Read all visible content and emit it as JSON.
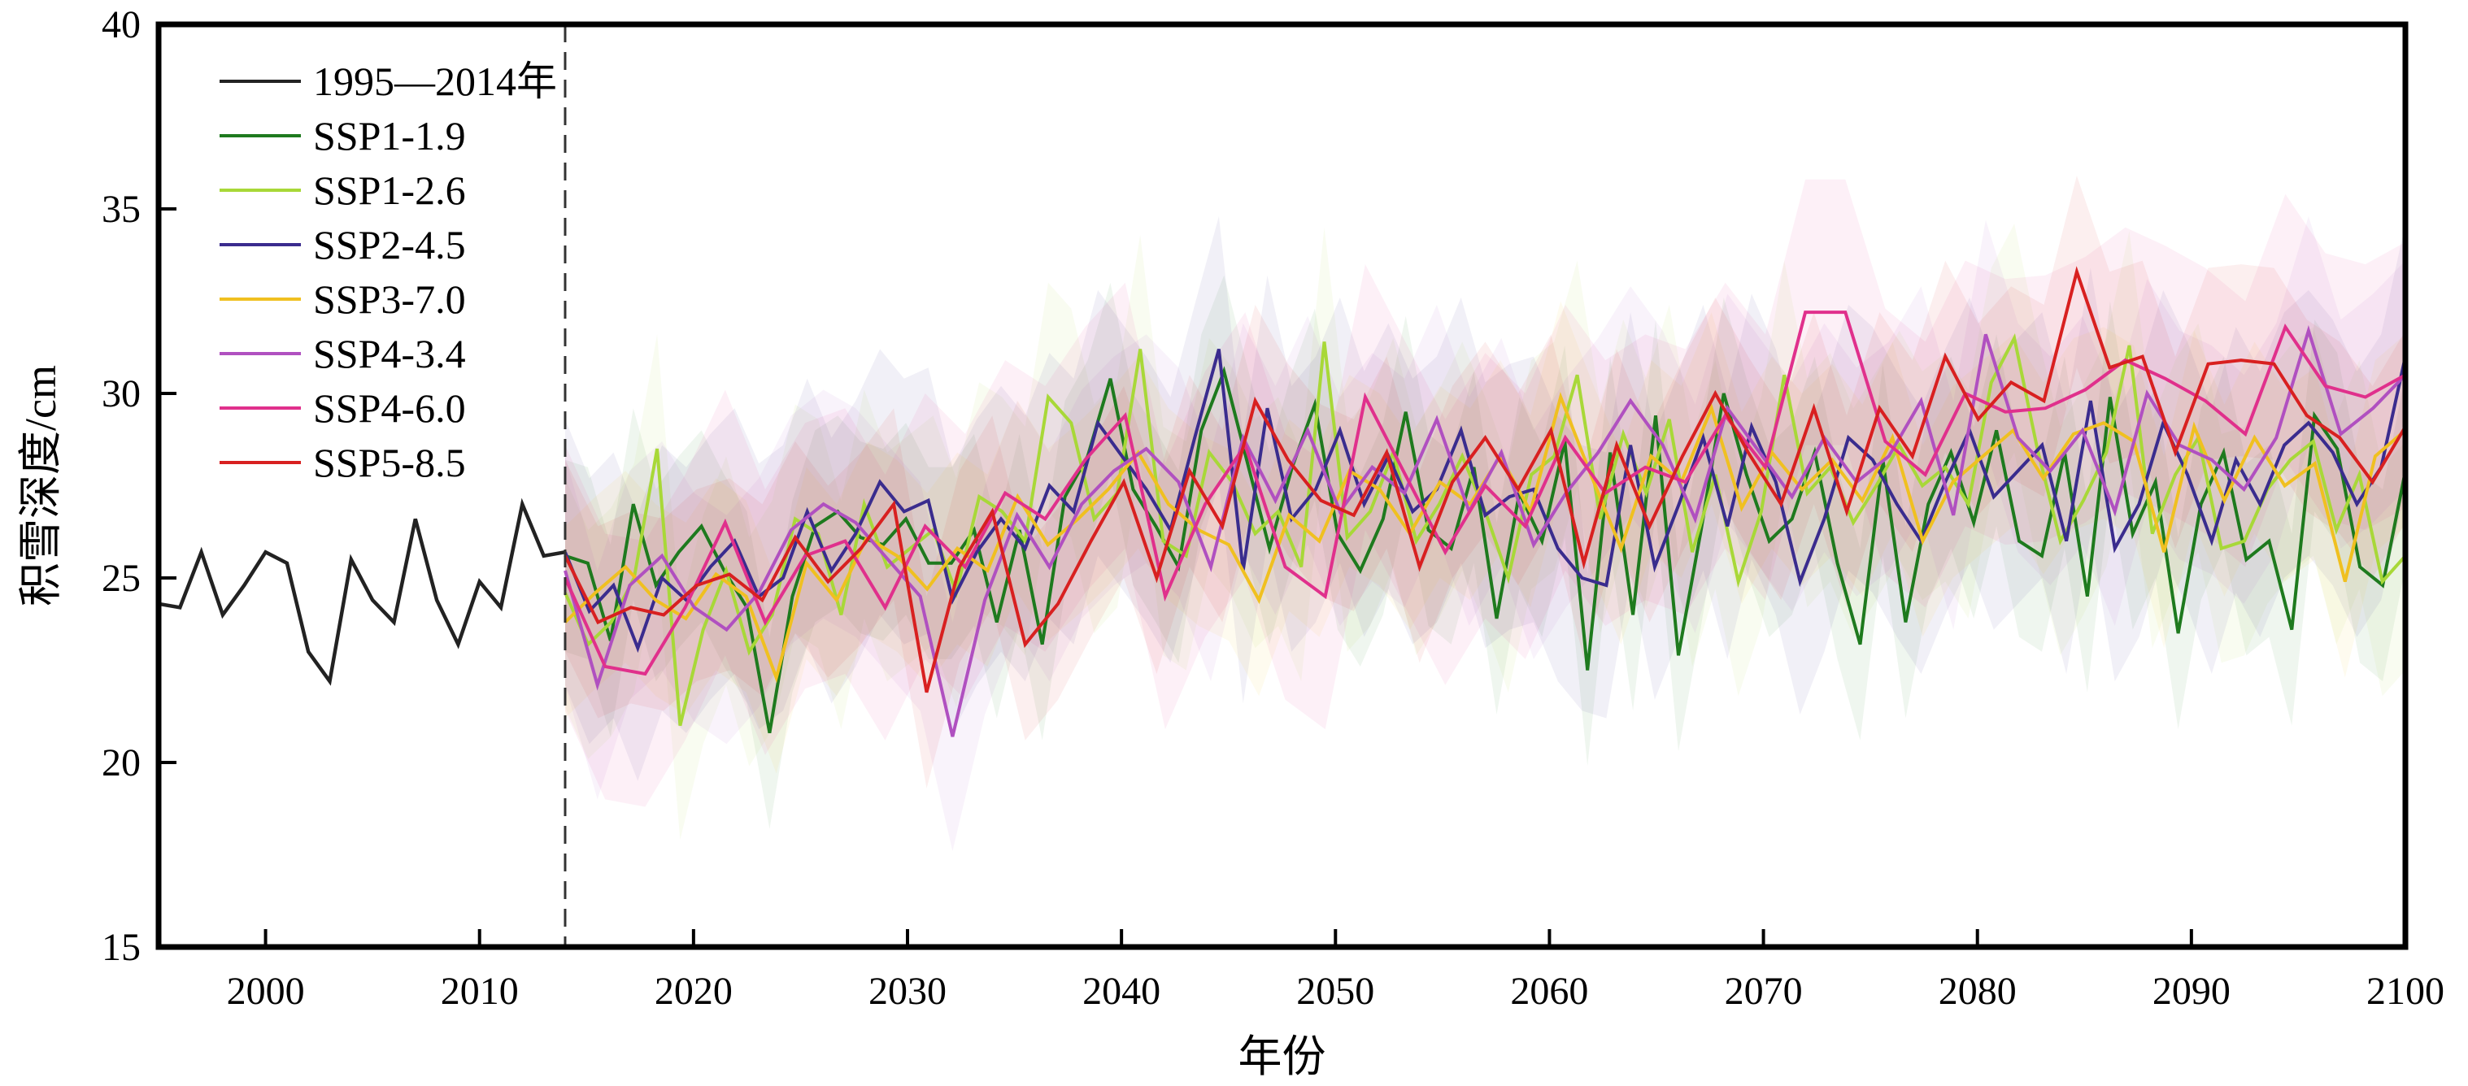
{
  "chart_data": {
    "type": "line",
    "xlabel": "年份",
    "ylabel": "积雪深度/cm",
    "xlim": [
      1995,
      2100
    ],
    "ylim": [
      15,
      40
    ],
    "xticks": [
      2000,
      2010,
      2020,
      2030,
      2040,
      2050,
      2060,
      2070,
      2080,
      2090,
      2100
    ],
    "yticks": [
      15,
      20,
      25,
      30,
      35,
      40
    ],
    "divider_year": 2014,
    "legend_position": "top-left",
    "historical": {
      "name": "1995—2014年",
      "color": "#222222",
      "x": [
        1995,
        1996,
        1997,
        1998,
        1999,
        2000,
        2001,
        2002,
        2003,
        2004,
        2005,
        2006,
        2007,
        2008,
        2009,
        2010,
        2011,
        2012,
        2013,
        2014
      ],
      "values": [
        24.3,
        24.2,
        25.7,
        24.0,
        24.8,
        25.7,
        25.4,
        23.0,
        22.2,
        25.5,
        24.4,
        23.8,
        26.6,
        24.4,
        23.2,
        24.9,
        24.2,
        27.0,
        25.6,
        25.7
      ]
    },
    "scenario_start": 2014,
    "series": [
      {
        "name": "SSP1-1.9",
        "color": "#1e7a1e",
        "values": [
          25.6,
          25.4,
          23.3,
          27.0,
          24.8,
          25.7,
          26.4,
          25.2,
          24.2,
          20.8,
          24.5,
          26.4,
          26.8,
          26.1,
          25.9,
          26.6,
          25.4,
          25.4,
          26.3,
          23.8,
          26.3,
          23.2,
          27.2,
          28.3,
          30.4,
          27.4,
          26.4,
          25.3,
          29.0,
          30.6,
          28.2,
          25.8,
          28.0,
          29.7,
          26.2,
          25.2,
          26.6,
          29.5,
          26.3,
          25.8,
          28.0,
          23.9,
          27.3,
          26.0,
          28.7,
          22.5,
          28.4,
          24.0,
          29.4,
          22.9,
          26.3,
          30.0,
          27.8,
          26.0,
          26.6,
          28.4,
          25.4,
          23.2,
          28.2,
          23.8,
          27.0,
          28.4,
          26.5,
          29.0,
          26.0,
          25.6,
          28.4,
          24.5,
          29.9,
          26.2,
          27.6,
          23.5,
          27.0,
          28.4,
          25.5,
          26.0,
          23.6,
          29.4,
          28.5,
          25.3,
          24.8,
          27.9
        ]
      },
      {
        "name": "SSP1-2.6",
        "color": "#a8d838",
        "values": [
          24.6,
          23.2,
          23.8,
          25.0,
          28.5,
          21.0,
          23.6,
          25.2,
          23.0,
          24.0,
          26.6,
          26.2,
          24.0,
          27.0,
          25.3,
          25.8,
          26.3,
          24.6,
          27.2,
          26.8,
          26.0,
          29.9,
          29.2,
          26.6,
          27.3,
          31.2,
          26.0,
          25.6,
          28.4,
          27.6,
          26.2,
          26.8,
          25.3,
          31.4,
          26.1,
          26.8,
          28.4,
          26.0,
          27.0,
          28.3,
          26.8,
          25.0,
          27.8,
          28.3,
          30.5,
          26.6,
          28.9,
          27.3,
          29.3,
          25.7,
          27.8,
          24.9,
          26.8,
          30.5,
          27.3,
          28.0,
          26.5,
          27.5,
          28.6,
          27.5,
          28.0,
          27.0,
          30.3,
          31.5,
          28.5,
          26.0,
          27.1,
          28.4,
          31.3,
          26.2,
          27.8,
          28.8,
          25.8,
          26.0,
          27.4,
          28.2,
          28.7,
          26.3,
          27.8,
          24.9,
          25.6
        ]
      },
      {
        "name": "SSP2-4.5",
        "color": "#3a2c8e",
        "values": [
          25.7,
          24.1,
          24.8,
          23.1,
          25.0,
          24.4,
          25.3,
          26.0,
          24.5,
          25.0,
          26.8,
          25.2,
          26.2,
          27.6,
          26.8,
          27.1,
          24.4,
          25.7,
          26.6,
          25.8,
          27.5,
          26.8,
          29.2,
          28.3,
          27.4,
          26.3,
          28.8,
          31.2,
          25.2,
          29.6,
          26.6,
          27.4,
          29.0,
          27.0,
          28.3,
          26.8,
          27.4,
          29.0,
          26.7,
          27.2,
          27.4,
          25.8,
          25.0,
          24.8,
          28.6,
          25.3,
          27.0,
          28.8,
          26.4,
          29.1,
          27.6,
          24.9,
          26.6,
          28.8,
          28.2,
          27.0,
          26.0,
          27.6,
          29.0,
          27.2,
          27.9,
          28.6,
          26.0,
          29.8,
          25.8,
          27.0,
          29.2,
          27.8,
          26.0,
          28.2,
          27.0,
          28.6,
          29.2,
          28.4,
          27.0,
          28.0,
          31.0
        ]
      },
      {
        "name": "SSP3-7.0",
        "color": "#f0c020",
        "values": [
          23.8,
          24.6,
          25.3,
          24.4,
          23.9,
          25.1,
          24.5,
          22.3,
          25.4,
          24.4,
          26.1,
          25.6,
          24.7,
          25.8,
          25.2,
          27.2,
          25.9,
          26.6,
          27.4,
          28.4,
          27.0,
          26.3,
          25.9,
          24.4,
          26.7,
          26.0,
          27.9,
          27.4,
          26.2,
          27.6,
          27.0,
          28.3,
          26.8,
          29.9,
          27.8,
          25.8,
          28.3,
          27.6,
          29.6,
          26.9,
          28.4,
          27.4,
          28.2,
          27.1,
          28.8,
          26.0,
          27.6,
          28.3,
          29.0,
          27.7,
          28.9,
          29.2,
          28.7,
          25.7,
          29.1,
          27.1,
          28.8,
          27.5,
          28.1,
          24.9,
          28.3,
          29.0
        ]
      },
      {
        "name": "SSP4-3.4",
        "color": "#b050c0",
        "values": [
          25.2,
          22.1,
          24.8,
          25.6,
          24.2,
          23.6,
          24.6,
          26.3,
          27.0,
          26.5,
          25.5,
          24.5,
          20.7,
          24.4,
          26.7,
          25.3,
          27.0,
          27.9,
          28.5,
          27.6,
          25.3,
          28.8,
          27.1,
          29.0,
          26.8,
          28.0,
          27.3,
          29.3,
          26.8,
          28.4,
          25.9,
          27.3,
          28.4,
          29.8,
          28.6,
          26.6,
          29.6,
          28.4,
          27.2,
          28.8,
          27.6,
          28.3,
          29.8,
          26.7,
          31.6,
          28.8,
          27.9,
          29.0,
          26.8,
          30.0,
          28.6,
          28.2,
          27.4,
          28.8,
          31.7,
          28.9,
          29.6,
          30.5
        ]
      },
      {
        "name": "SSP4-6.0",
        "color": "#e0308c",
        "values": [
          25.0,
          22.6,
          22.4,
          24.2,
          26.5,
          23.8,
          25.6,
          26.0,
          24.2,
          26.4,
          25.3,
          27.3,
          26.6,
          28.2,
          29.4,
          24.5,
          27.0,
          28.6,
          25.3,
          24.5,
          29.9,
          27.8,
          25.7,
          27.5,
          26.4,
          28.8,
          27.3,
          28.0,
          27.6,
          29.4,
          28.0,
          32.2,
          32.2,
          28.7,
          27.8,
          30.0,
          29.5,
          29.6,
          30.1,
          30.9,
          30.4,
          29.8,
          28.9,
          31.8,
          30.2,
          29.9,
          30.5
        ]
      },
      {
        "name": "SSP5-8.5",
        "color": "#d82020",
        "values": [
          25.6,
          23.8,
          24.2,
          24.0,
          24.8,
          25.1,
          24.4,
          26.1,
          24.9,
          25.8,
          27.0,
          21.9,
          25.3,
          26.8,
          23.2,
          24.3,
          26.0,
          27.6,
          25.0,
          27.9,
          26.4,
          29.8,
          28.2,
          27.1,
          26.7,
          28.4,
          25.3,
          27.6,
          28.8,
          27.4,
          29.0,
          25.4,
          28.6,
          26.4,
          28.3,
          30.0,
          28.4,
          27.0,
          29.6,
          26.8,
          29.6,
          28.3,
          31.0,
          29.3,
          30.3,
          29.8,
          33.3,
          30.7,
          31.0,
          28.4,
          30.8,
          30.9,
          30.8,
          29.4,
          28.8,
          27.6,
          29.1
        ]
      }
    ]
  }
}
